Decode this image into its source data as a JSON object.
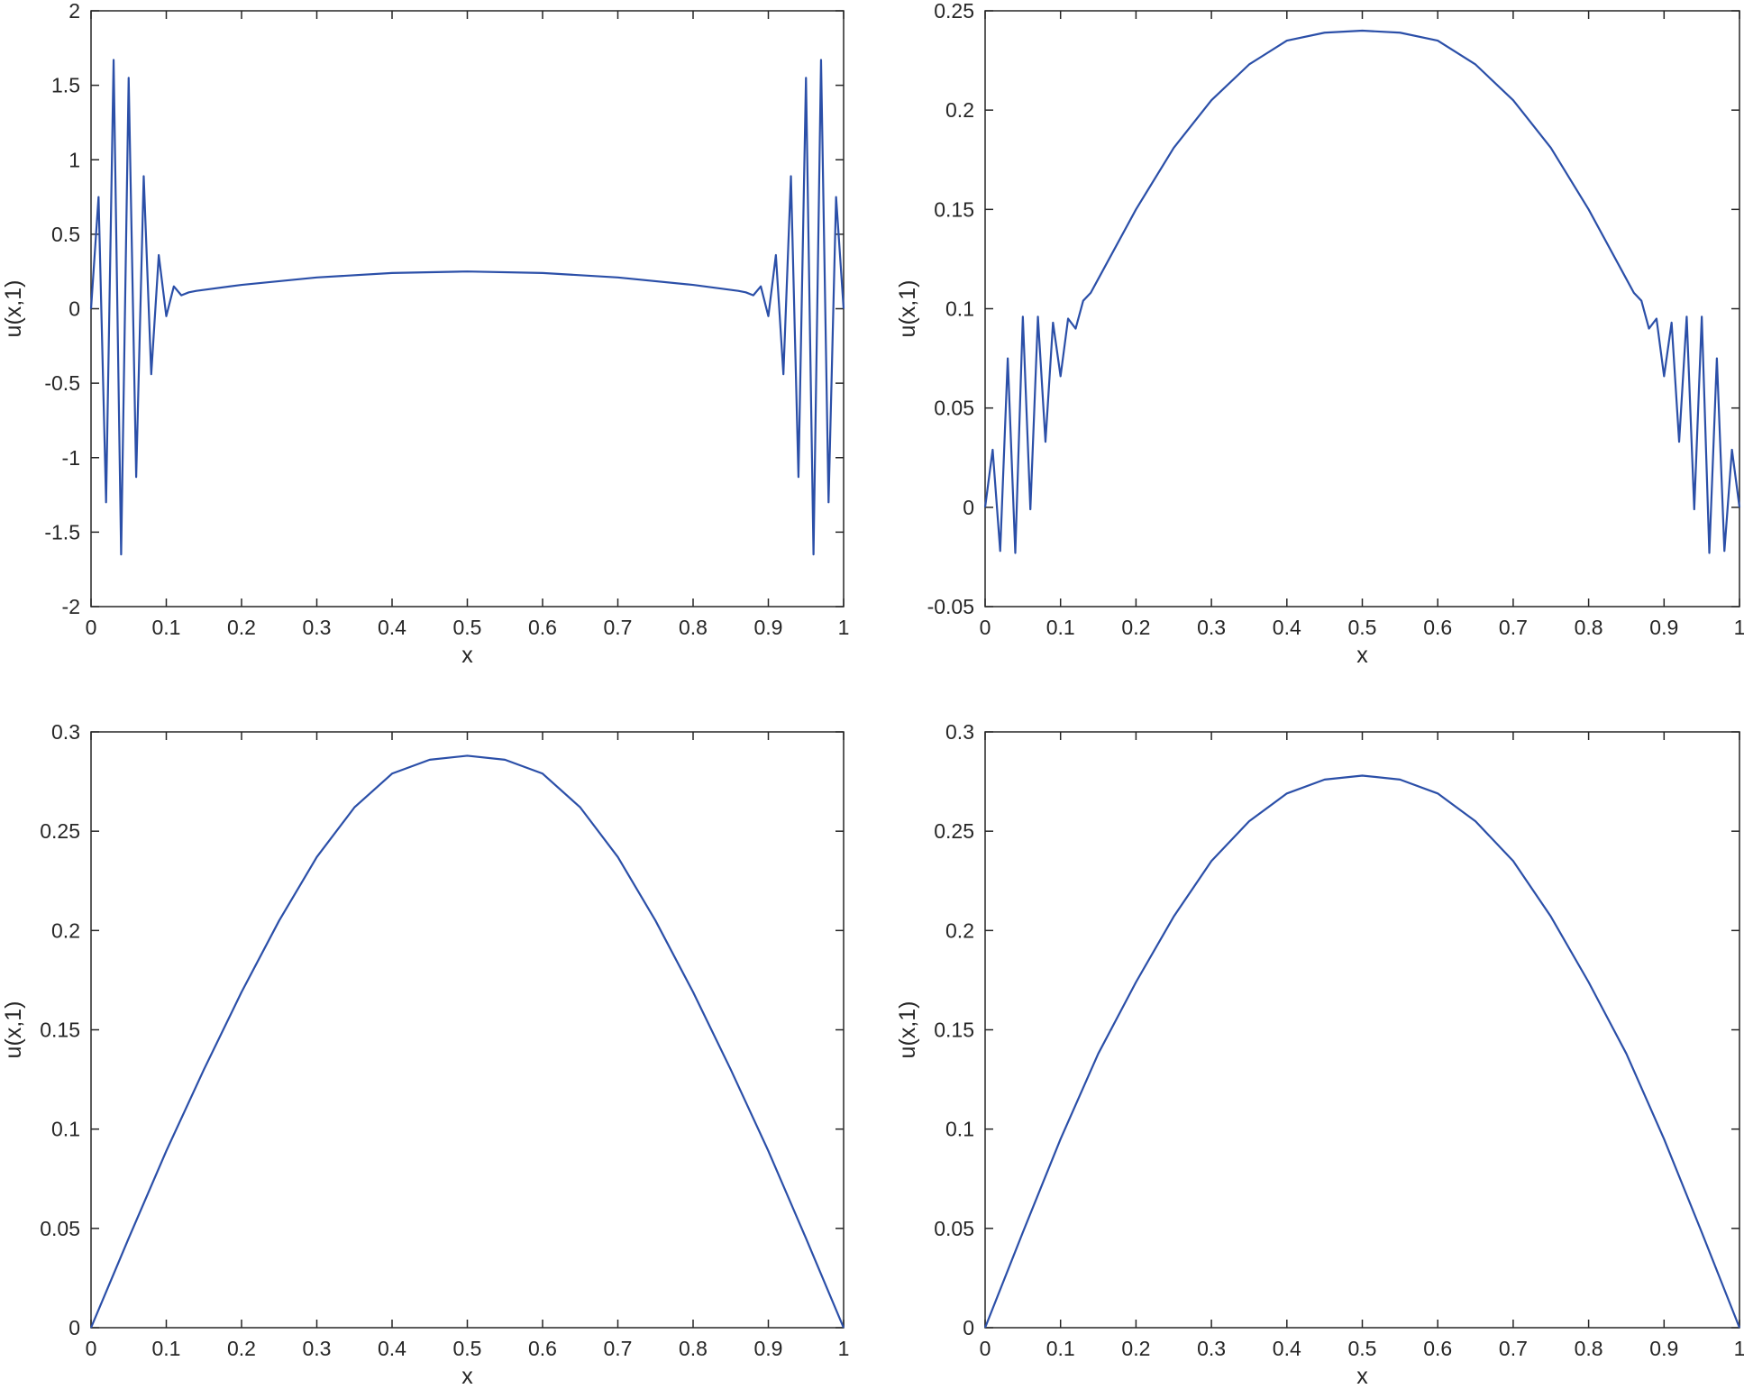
{
  "chart_data": [
    {
      "type": "line",
      "xlabel": "x",
      "ylabel": "u(x,1)",
      "xlim": [
        0,
        1
      ],
      "ylim": [
        -2,
        2
      ],
      "xticks": [
        0,
        0.1,
        0.2,
        0.3,
        0.4,
        0.5,
        0.6,
        0.7,
        0.8,
        0.9,
        1
      ],
      "xtick_labels": [
        "0",
        "0.1",
        "0.2",
        "0.3",
        "0.4",
        "0.5",
        "0.6",
        "0.7",
        "0.8",
        "0.9",
        "1"
      ],
      "yticks": [
        -2,
        -1.5,
        -1,
        -0.5,
        0,
        0.5,
        1,
        1.5,
        2
      ],
      "ytick_labels": [
        "-2",
        "-1.5",
        "-1",
        "-0.5",
        "0",
        "0.5",
        "1",
        "1.5",
        "2"
      ],
      "grid": false,
      "series": [
        {
          "color": "#2b4fa8",
          "x": [
            0,
            0.01,
            0.02,
            0.03,
            0.04,
            0.05,
            0.06,
            0.07,
            0.08,
            0.09,
            0.1,
            0.11,
            0.12,
            0.13,
            0.14,
            0.2,
            0.3,
            0.4,
            0.5,
            0.6,
            0.7,
            0.8,
            0.86,
            0.87,
            0.88,
            0.89,
            0.9,
            0.91,
            0.92,
            0.93,
            0.94,
            0.95,
            0.96,
            0.97,
            0.98,
            0.99,
            1
          ],
          "y": [
            0,
            0.75,
            -1.3,
            1.67,
            -1.65,
            1.55,
            -1.13,
            0.89,
            -0.44,
            0.36,
            -0.05,
            0.15,
            0.09,
            0.11,
            0.12,
            0.16,
            0.21,
            0.24,
            0.25,
            0.24,
            0.21,
            0.16,
            0.12,
            0.11,
            0.09,
            0.15,
            -0.05,
            0.36,
            -0.44,
            0.89,
            -1.13,
            1.55,
            -1.65,
            1.67,
            -1.3,
            0.75,
            0
          ]
        }
      ]
    },
    {
      "type": "line",
      "xlabel": "x",
      "ylabel": "u(x,1)",
      "xlim": [
        0,
        1
      ],
      "ylim": [
        -0.05,
        0.25
      ],
      "xticks": [
        0,
        0.1,
        0.2,
        0.3,
        0.4,
        0.5,
        0.6,
        0.7,
        0.8,
        0.9,
        1
      ],
      "xtick_labels": [
        "0",
        "0.1",
        "0.2",
        "0.3",
        "0.4",
        "0.5",
        "0.6",
        "0.7",
        "0.8",
        "0.9",
        "1"
      ],
      "yticks": [
        -0.05,
        0,
        0.05,
        0.1,
        0.15,
        0.2,
        0.25
      ],
      "ytick_labels": [
        "-0.05",
        "0",
        "0.05",
        "0.1",
        "0.15",
        "0.2",
        "0.25"
      ],
      "grid": false,
      "series": [
        {
          "color": "#2b4fa8",
          "x": [
            0,
            0.01,
            0.02,
            0.03,
            0.04,
            0.05,
            0.06,
            0.07,
            0.08,
            0.09,
            0.1,
            0.11,
            0.12,
            0.13,
            0.14,
            0.15,
            0.2,
            0.25,
            0.3,
            0.35,
            0.4,
            0.45,
            0.5,
            0.55,
            0.6,
            0.65,
            0.7,
            0.75,
            0.8,
            0.85,
            0.86,
            0.87,
            0.88,
            0.89,
            0.9,
            0.91,
            0.92,
            0.93,
            0.94,
            0.95,
            0.96,
            0.97,
            0.98,
            0.99,
            1
          ],
          "y": [
            0,
            0.029,
            -0.022,
            0.075,
            -0.023,
            0.096,
            -0.001,
            0.096,
            0.033,
            0.093,
            0.066,
            0.095,
            0.09,
            0.104,
            0.108,
            0.115,
            0.15,
            0.181,
            0.205,
            0.223,
            0.235,
            0.239,
            0.24,
            0.239,
            0.235,
            0.223,
            0.205,
            0.181,
            0.15,
            0.115,
            0.108,
            0.104,
            0.09,
            0.095,
            0.066,
            0.093,
            0.033,
            0.096,
            -0.001,
            0.096,
            -0.023,
            0.075,
            -0.022,
            0.029,
            0
          ]
        }
      ]
    },
    {
      "type": "line",
      "xlabel": "x",
      "ylabel": "u(x,1)",
      "xlim": [
        0,
        1
      ],
      "ylim": [
        0,
        0.3
      ],
      "xticks": [
        0,
        0.1,
        0.2,
        0.3,
        0.4,
        0.5,
        0.6,
        0.7,
        0.8,
        0.9,
        1
      ],
      "xtick_labels": [
        "0",
        "0.1",
        "0.2",
        "0.3",
        "0.4",
        "0.5",
        "0.6",
        "0.7",
        "0.8",
        "0.9",
        "1"
      ],
      "yticks": [
        0,
        0.05,
        0.1,
        0.15,
        0.2,
        0.25,
        0.3
      ],
      "ytick_labels": [
        "0",
        "0.05",
        "0.1",
        "0.15",
        "0.2",
        "0.25",
        "0.3"
      ],
      "grid": false,
      "series": [
        {
          "color": "#2b4fa8",
          "x": [
            0,
            0.05,
            0.1,
            0.15,
            0.2,
            0.25,
            0.3,
            0.35,
            0.4,
            0.45,
            0.5,
            0.55,
            0.6,
            0.65,
            0.7,
            0.75,
            0.8,
            0.85,
            0.9,
            0.95,
            1
          ],
          "y": [
            0,
            0.045,
            0.089,
            0.13,
            0.169,
            0.205,
            0.237,
            0.262,
            0.279,
            0.286,
            0.288,
            0.286,
            0.279,
            0.262,
            0.237,
            0.205,
            0.169,
            0.13,
            0.089,
            0.045,
            0
          ]
        }
      ]
    },
    {
      "type": "line",
      "xlabel": "x",
      "ylabel": "u(x,1)",
      "xlim": [
        0,
        1
      ],
      "ylim": [
        0,
        0.3
      ],
      "xticks": [
        0,
        0.1,
        0.2,
        0.3,
        0.4,
        0.5,
        0.6,
        0.7,
        0.8,
        0.9,
        1
      ],
      "xtick_labels": [
        "0",
        "0.1",
        "0.2",
        "0.3",
        "0.4",
        "0.5",
        "0.6",
        "0.7",
        "0.8",
        "0.9",
        "1"
      ],
      "yticks": [
        0,
        0.05,
        0.1,
        0.15,
        0.2,
        0.25,
        0.3
      ],
      "ytick_labels": [
        "0",
        "0.05",
        "0.1",
        "0.15",
        "0.2",
        "0.25",
        "0.3"
      ],
      "grid": false,
      "series": [
        {
          "color": "#2b4fa8",
          "x": [
            0,
            0.05,
            0.1,
            0.15,
            0.2,
            0.25,
            0.3,
            0.35,
            0.4,
            0.45,
            0.5,
            0.55,
            0.6,
            0.65,
            0.7,
            0.75,
            0.8,
            0.85,
            0.9,
            0.95,
            1
          ],
          "y": [
            0,
            0.048,
            0.095,
            0.138,
            0.174,
            0.207,
            0.235,
            0.255,
            0.269,
            0.276,
            0.278,
            0.276,
            0.269,
            0.255,
            0.235,
            0.207,
            0.174,
            0.138,
            0.095,
            0.048,
            0
          ]
        }
      ]
    }
  ]
}
